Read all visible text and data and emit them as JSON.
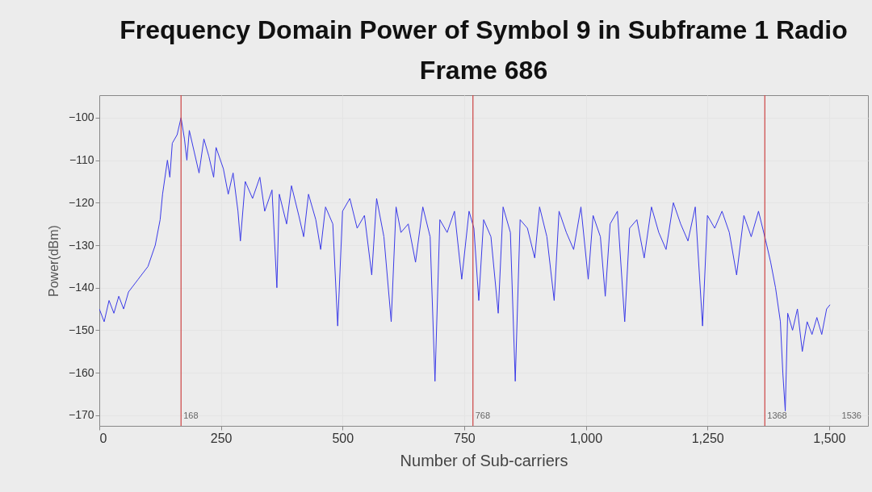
{
  "chart_data": {
    "type": "line",
    "title": "Frequency Domain Power of Symbol 9 in Subframe 1 Radio Frame 686",
    "xlabel": "Number of Sub-carriers",
    "ylabel": "Power(dBm)",
    "x": [
      0,
      10,
      20,
      30,
      40,
      50,
      60,
      80,
      100,
      115,
      125,
      130,
      140,
      145,
      150,
      160,
      168,
      175,
      180,
      185,
      195,
      205,
      215,
      225,
      235,
      240,
      255,
      265,
      275,
      285,
      290,
      300,
      315,
      330,
      340,
      355,
      365,
      370,
      385,
      395,
      410,
      420,
      430,
      445,
      455,
      465,
      480,
      490,
      500,
      515,
      530,
      545,
      560,
      570,
      585,
      600,
      610,
      620,
      635,
      650,
      665,
      680,
      690,
      700,
      715,
      730,
      745,
      760,
      770,
      780,
      790,
      805,
      820,
      830,
      845,
      855,
      865,
      880,
      895,
      905,
      920,
      935,
      945,
      960,
      975,
      990,
      1005,
      1015,
      1030,
      1040,
      1050,
      1065,
      1080,
      1090,
      1105,
      1120,
      1135,
      1150,
      1165,
      1180,
      1195,
      1210,
      1225,
      1240,
      1250,
      1265,
      1280,
      1295,
      1310,
      1325,
      1340,
      1355,
      1370,
      1380,
      1390,
      1400,
      1405,
      1410,
      1415,
      1425,
      1435,
      1445,
      1455,
      1465,
      1475,
      1485,
      1495,
      1502
    ],
    "series": [
      {
        "color": "#3a3ae8",
        "values": [
          -145,
          -148,
          -143,
          -146,
          -142,
          -145,
          -141,
          -138,
          -135,
          -130,
          -124,
          -118,
          -110,
          -114,
          -106,
          -104,
          -100,
          -105,
          -110,
          -103,
          -108,
          -113,
          -105,
          -109,
          -114,
          -107,
          -112,
          -118,
          -113,
          -122,
          -129,
          -115,
          -119,
          -114,
          -122,
          -117,
          -140,
          -118,
          -125,
          -116,
          -123,
          -128,
          -118,
          -124,
          -131,
          -121,
          -125,
          -149,
          -122,
          -119,
          -126,
          -123,
          -137,
          -119,
          -128,
          -148,
          -121,
          -127,
          -125,
          -134,
          -121,
          -128,
          -162,
          -124,
          -127,
          -122,
          -138,
          -122,
          -126,
          -143,
          -124,
          -128,
          -146,
          -121,
          -127,
          -162,
          -124,
          -126,
          -133,
          -121,
          -128,
          -143,
          -122,
          -127,
          -131,
          -121,
          -138,
          -123,
          -128,
          -142,
          -125,
          -122,
          -148,
          -126,
          -124,
          -133,
          -121,
          -127,
          -131,
          -120,
          -125,
          -129,
          -121,
          -149,
          -123,
          -126,
          -122,
          -127,
          -137,
          -123,
          -128,
          -122,
          -129,
          -134,
          -140,
          -148,
          -160,
          -169,
          -146,
          -150,
          -145,
          -155,
          -148,
          -151,
          -147,
          -151,
          -145,
          -144
        ]
      }
    ],
    "xlim": [
      0,
      1580
    ],
    "ylim": [
      -172.5,
      -94.7
    ],
    "xticks": [
      0,
      250,
      500,
      750,
      {
        "value": 1000,
        "label": "1,000"
      },
      {
        "value": 1250,
        "label": "1,250"
      },
      {
        "value": 1500,
        "label": "1,500"
      }
    ],
    "yticks": [
      -100,
      -110,
      -120,
      -130,
      -140,
      -150,
      -160,
      -170
    ],
    "ref_lines": [
      {
        "axis": "x",
        "value": 168,
        "label": "168",
        "color": "#cc4444"
      },
      {
        "axis": "x",
        "value": 768,
        "label": "768",
        "color": "#cc4444"
      },
      {
        "axis": "x",
        "value": 1368,
        "label": "1368",
        "color": "#cc4444"
      }
    ],
    "annotations": [
      "1536"
    ],
    "grid": true
  }
}
